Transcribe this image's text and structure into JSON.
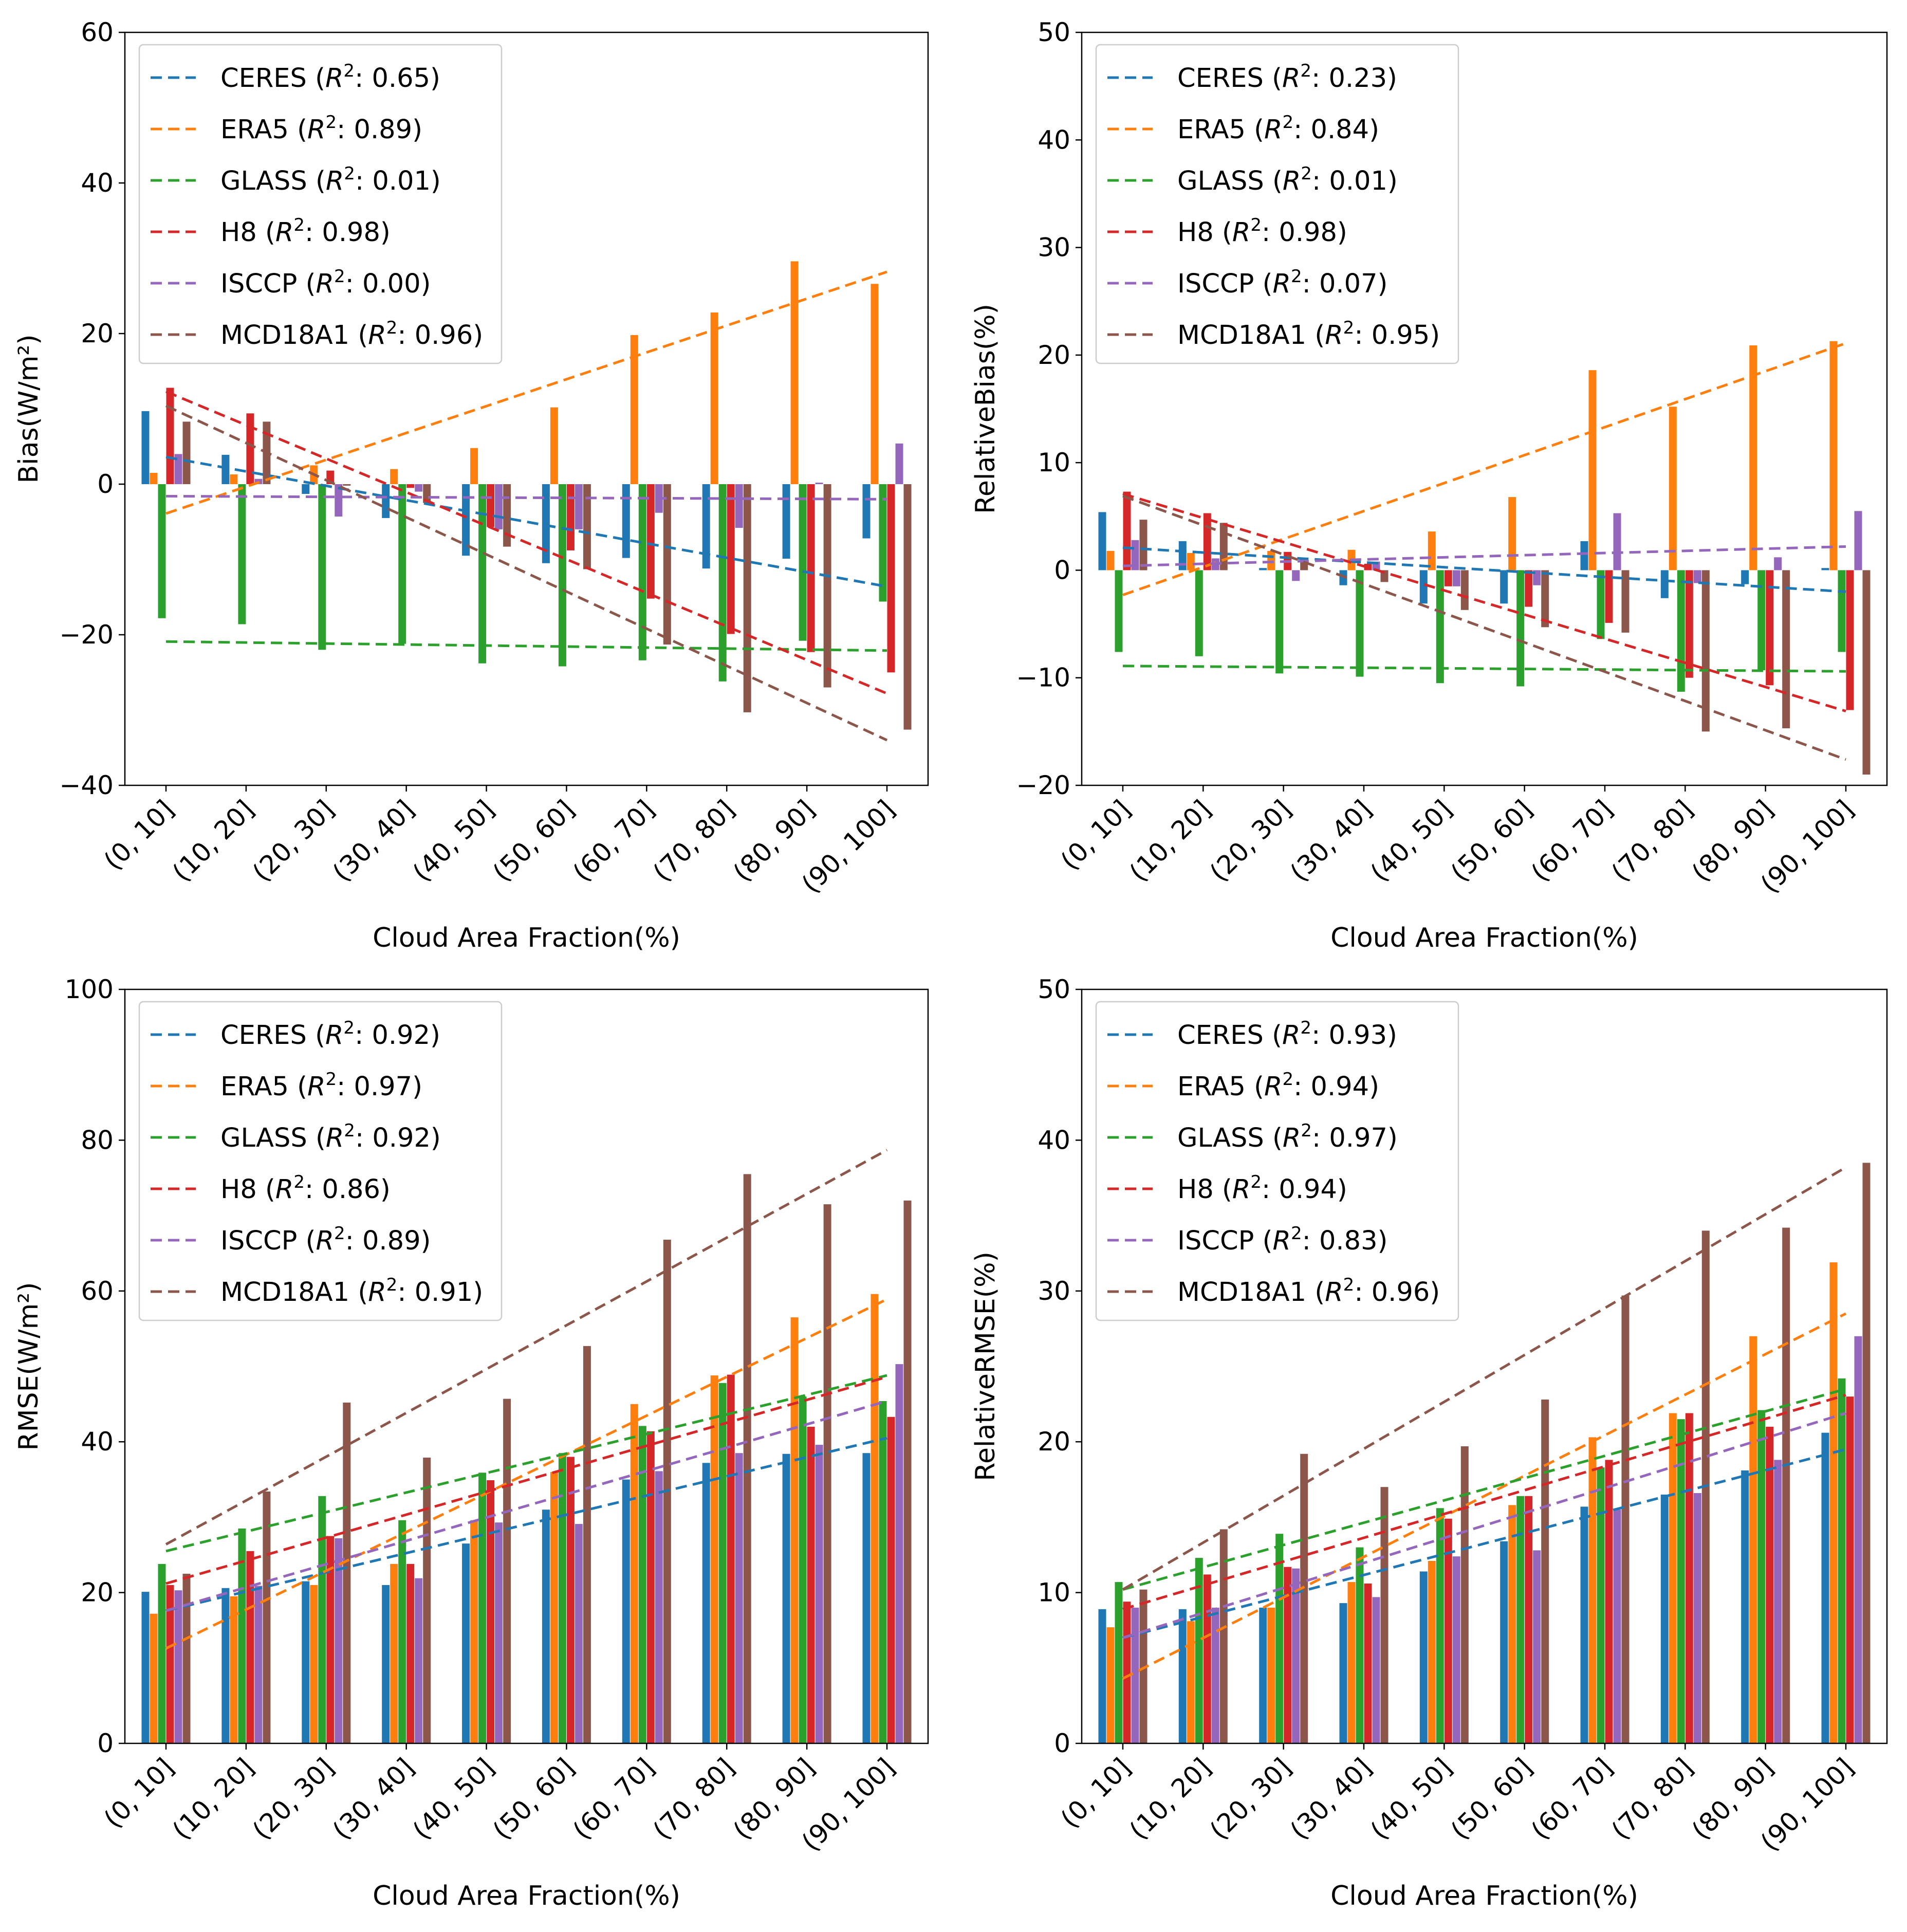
{
  "colors": {
    "CERES": "#1f77b4",
    "ERA5": "#ff7f0e",
    "GLASS": "#2ca02c",
    "H8": "#d62728",
    "ISCCP": "#9467bd",
    "MCD18A1": "#8c564b"
  },
  "chart_data": [
    {
      "type": "bar",
      "id": "bias",
      "ylabel": "Bias(W/m²)",
      "xlabel": "Cloud Area Fraction(%)",
      "ylim": [
        -40,
        60
      ],
      "yticks": [
        -40,
        -20,
        0,
        20,
        40,
        60
      ],
      "yticklabels": [
        "−40",
        "−20",
        "0",
        "20",
        "40",
        "60"
      ],
      "legend_position": "upper-left",
      "categories": [
        "(0, 10]",
        "(10, 20]",
        "(20, 30]",
        "(30, 40]",
        "(40, 50]",
        "(50, 60]",
        "(60, 70]",
        "(70, 80]",
        "(80, 90]",
        "(90, 100]"
      ],
      "series": [
        {
          "name": "CERES",
          "r2": "0.65",
          "legend": "CERES (R2: 0.65)",
          "values": [
            9.7,
            3.9,
            -1.3,
            -4.5,
            -9.5,
            -10.5,
            -9.8,
            -11.2,
            -9.9,
            -7.2
          ],
          "trend": [
            3.6,
            -13.6
          ]
        },
        {
          "name": "ERA5",
          "r2": "0.89",
          "legend": "ERA5 (R2: 0.89)",
          "values": [
            1.5,
            1.3,
            2.5,
            2.0,
            4.8,
            10.2,
            19.8,
            22.8,
            29.6,
            26.6
          ],
          "trend": [
            -3.9,
            28.2
          ]
        },
        {
          "name": "GLASS",
          "r2": "0.01",
          "legend": "GLASS (R2: 0.01)",
          "values": [
            -17.8,
            -18.6,
            -22.0,
            -21.2,
            -23.8,
            -24.2,
            -23.4,
            -26.2,
            -20.8,
            -15.6
          ],
          "trend": [
            -20.9,
            -22.1
          ]
        },
        {
          "name": "H8",
          "r2": "0.98",
          "legend": "H8 (R2: 0.98)",
          "values": [
            12.8,
            9.4,
            1.8,
            -0.5,
            -5.7,
            -8.8,
            -15.2,
            -19.9,
            -22.3,
            -25.0
          ],
          "trend": [
            12.3,
            -27.8
          ]
        },
        {
          "name": "ISCCP",
          "r2": "0.00",
          "legend": "ISCCP (R2: 0.00)",
          "values": [
            4.0,
            0.7,
            -4.3,
            -1.0,
            -6.0,
            -6.0,
            -3.8,
            -5.8,
            0.2,
            5.4
          ],
          "trend": [
            -1.6,
            -2.0
          ]
        },
        {
          "name": "MCD18A1",
          "r2": "0.96",
          "legend": "MCD18A1 (R2: 0.96)",
          "values": [
            8.3,
            8.3,
            -0.2,
            -2.5,
            -8.3,
            -11.3,
            -21.3,
            -30.3,
            -27.0,
            -32.6
          ],
          "trend": [
            10.4,
            -34.0
          ]
        }
      ]
    },
    {
      "type": "bar",
      "id": "relative-bias",
      "ylabel": "RelativeBias(%)",
      "xlabel": "Cloud Area Fraction(%)",
      "ylim": [
        -20,
        50
      ],
      "yticks": [
        -20,
        -10,
        0,
        10,
        20,
        30,
        40,
        50
      ],
      "yticklabels": [
        "−20",
        "−10",
        "0",
        "10",
        "20",
        "30",
        "40",
        "50"
      ],
      "legend_position": "upper-left",
      "categories": [
        "(0, 10]",
        "(10, 20]",
        "(20, 30]",
        "(30, 40]",
        "(40, 50]",
        "(50, 60]",
        "(60, 70]",
        "(70, 80]",
        "(80, 90]",
        "(90, 100]"
      ],
      "series": [
        {
          "name": "CERES",
          "r2": "0.23",
          "legend": "CERES (R2: 0.23)",
          "values": [
            5.4,
            2.7,
            0.2,
            -1.4,
            -3.1,
            -3.1,
            2.7,
            -2.6,
            -1.3,
            0.2
          ],
          "trend": [
            2.1,
            -2.0
          ]
        },
        {
          "name": "ERA5",
          "r2": "0.84",
          "legend": "ERA5 (R2: 0.84)",
          "values": [
            1.8,
            1.6,
            1.8,
            1.9,
            3.6,
            6.8,
            18.6,
            15.2,
            20.9,
            21.3
          ],
          "trend": [
            -2.3,
            21.1
          ]
        },
        {
          "name": "GLASS",
          "r2": "0.01",
          "legend": "GLASS (R2: 0.01)",
          "values": [
            -7.6,
            -8.0,
            -9.6,
            -9.9,
            -10.5,
            -10.8,
            -6.4,
            -11.3,
            -9.3,
            -7.6
          ],
          "trend": [
            -8.9,
            -9.4
          ]
        },
        {
          "name": "H8",
          "r2": "0.98",
          "legend": "H8 (R2: 0.98)",
          "values": [
            7.3,
            5.3,
            1.7,
            0.6,
            -1.5,
            -3.4,
            -4.9,
            -10.0,
            -10.7,
            -13.0
          ],
          "trend": [
            7.1,
            -13.1
          ]
        },
        {
          "name": "ISCCP",
          "r2": "0.07",
          "legend": "ISCCP (R2: 0.07)",
          "values": [
            2.8,
            1.1,
            -1.0,
            0.8,
            -1.5,
            -1.4,
            5.3,
            -1.2,
            1.2,
            5.5
          ],
          "trend": [
            0.4,
            2.2
          ]
        },
        {
          "name": "MCD18A1",
          "r2": "0.95",
          "legend": "MCD18A1 (R2: 0.95)",
          "values": [
            4.7,
            4.4,
            1.1,
            -1.1,
            -3.7,
            -5.3,
            -5.8,
            -15.0,
            -14.7,
            -19.0
          ],
          "trend": [
            6.9,
            -17.6
          ]
        }
      ]
    },
    {
      "type": "bar",
      "id": "rmse",
      "ylabel": "RMSE(W/m²)",
      "xlabel": "Cloud Area Fraction(%)",
      "ylim": [
        0,
        100
      ],
      "yticks": [
        0,
        20,
        40,
        60,
        80,
        100
      ],
      "yticklabels": [
        "0",
        "20",
        "40",
        "60",
        "80",
        "100"
      ],
      "legend_position": "upper-left",
      "categories": [
        "(0, 10]",
        "(10, 20]",
        "(20, 30]",
        "(30, 40]",
        "(40, 50]",
        "(50, 60]",
        "(60, 70]",
        "(70, 80]",
        "(80, 90]",
        "(90, 100]"
      ],
      "series": [
        {
          "name": "CERES",
          "r2": "0.92",
          "legend": "CERES (R2: 0.92)",
          "values": [
            20.1,
            20.6,
            21.5,
            21.0,
            26.5,
            31.0,
            35.0,
            37.2,
            38.4,
            38.5
          ],
          "trend": [
            17.6,
            40.5
          ]
        },
        {
          "name": "ERA5",
          "r2": "0.97",
          "legend": "ERA5 (R2: 0.97)",
          "values": [
            17.2,
            19.5,
            21.0,
            23.8,
            29.6,
            36.0,
            45.0,
            48.8,
            56.5,
            59.6
          ],
          "trend": [
            12.6,
            58.9
          ]
        },
        {
          "name": "GLASS",
          "r2": "0.92",
          "legend": "GLASS (R2: 0.92)",
          "values": [
            23.8,
            28.5,
            32.8,
            29.6,
            35.9,
            38.5,
            42.1,
            47.8,
            46.0,
            45.4
          ],
          "trend": [
            25.5,
            48.8
          ]
        },
        {
          "name": "H8",
          "r2": "0.86",
          "legend": "H8 (R2: 0.86)",
          "values": [
            21.0,
            25.5,
            27.5,
            23.8,
            34.9,
            38.0,
            41.4,
            48.9,
            42.0,
            43.3
          ],
          "trend": [
            21.2,
            48.6
          ]
        },
        {
          "name": "ISCCP",
          "r2": "0.89",
          "legend": "ISCCP (R2: 0.89)",
          "values": [
            20.3,
            20.9,
            27.2,
            21.9,
            29.3,
            29.1,
            36.1,
            38.5,
            39.6,
            50.3
          ],
          "trend": [
            17.6,
            45.4
          ]
        },
        {
          "name": "MCD18A1",
          "r2": "0.91",
          "legend": "MCD18A1 (R2: 0.91)",
          "values": [
            22.5,
            33.4,
            45.2,
            37.9,
            45.7,
            52.7,
            66.8,
            75.5,
            71.5,
            72.0
          ],
          "trend": [
            26.4,
            78.7
          ]
        }
      ]
    },
    {
      "type": "bar",
      "id": "relative-rmse",
      "ylabel": "RelativeRMSE(%)",
      "xlabel": "Cloud Area Fraction(%)",
      "ylim": [
        0,
        50
      ],
      "yticks": [
        0,
        10,
        20,
        30,
        40,
        50
      ],
      "yticklabels": [
        "0",
        "10",
        "20",
        "30",
        "40",
        "50"
      ],
      "legend_position": "upper-left",
      "categories": [
        "(0, 10]",
        "(10, 20]",
        "(20, 30]",
        "(30, 40]",
        "(40, 50]",
        "(50, 60]",
        "(60, 70]",
        "(70, 80]",
        "(80, 90]",
        "(90, 100]"
      ],
      "series": [
        {
          "name": "CERES",
          "r2": "0.93",
          "legend": "CERES (R2: 0.93)",
          "values": [
            8.9,
            8.9,
            9.0,
            9.3,
            11.4,
            13.4,
            15.7,
            16.5,
            18.1,
            20.6
          ],
          "trend": [
            7.0,
            19.5
          ]
        },
        {
          "name": "ERA5",
          "r2": "0.94",
          "legend": "ERA5 (R2: 0.94)",
          "values": [
            7.7,
            8.1,
            9.0,
            10.7,
            12.1,
            15.8,
            20.3,
            21.9,
            27.0,
            31.9
          ],
          "trend": [
            4.3,
            28.5
          ]
        },
        {
          "name": "GLASS",
          "r2": "0.97",
          "legend": "GLASS (R2: 0.97)",
          "values": [
            10.7,
            12.3,
            13.9,
            13.0,
            15.6,
            16.4,
            18.3,
            21.5,
            22.1,
            24.2
          ],
          "trend": [
            10.2,
            23.5
          ]
        },
        {
          "name": "H8",
          "r2": "0.94",
          "legend": "H8 (R2: 0.94)",
          "values": [
            9.4,
            11.2,
            11.7,
            10.6,
            14.9,
            16.4,
            18.8,
            21.9,
            21.0,
            23.0
          ],
          "trend": [
            8.9,
            23.1
          ]
        },
        {
          "name": "ISCCP",
          "r2": "0.83",
          "legend": "ISCCP (R2: 0.83)",
          "values": [
            9.0,
            9.0,
            11.6,
            9.7,
            12.4,
            12.8,
            15.5,
            16.6,
            18.8,
            27.0
          ],
          "trend": [
            7.0,
            21.9
          ]
        },
        {
          "name": "MCD18A1",
          "r2": "0.96",
          "legend": "MCD18A1 (R2: 0.96)",
          "values": [
            10.2,
            14.2,
            19.2,
            17.0,
            19.7,
            22.8,
            29.7,
            34.0,
            34.2,
            38.5
          ],
          "trend": [
            10.2,
            38.2
          ]
        }
      ]
    }
  ]
}
